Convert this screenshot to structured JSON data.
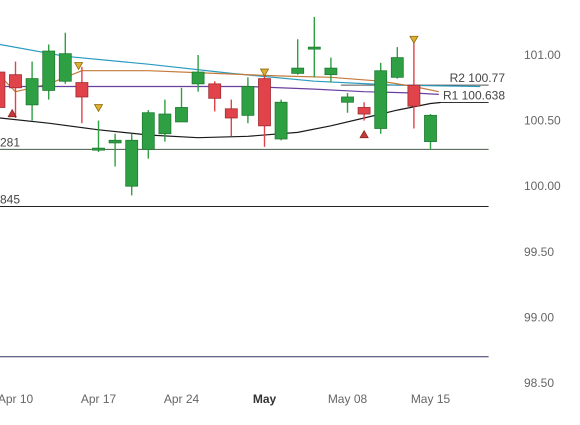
{
  "chart_data": {
    "type": "candlestick",
    "instrument_hint": "",
    "y_axis": {
      "ticks": [
        "101.00",
        "100.50",
        "100.00",
        "99.50",
        "99.00",
        "98.50"
      ],
      "tick_values": [
        101.0,
        100.5,
        100.0,
        99.5,
        99.0,
        98.5
      ],
      "ylim": [
        98.45,
        101.35
      ]
    },
    "x_axis": {
      "ticks": [
        {
          "label": "Apr 10",
          "index": 0,
          "bold": false
        },
        {
          "label": "Apr 17",
          "index": 5,
          "bold": false
        },
        {
          "label": "Apr 24",
          "index": 10,
          "bold": false
        },
        {
          "label": "May",
          "index": 15,
          "bold": true
        },
        {
          "label": "May 08",
          "index": 20,
          "bold": false
        },
        {
          "label": "May 15",
          "index": 25,
          "bold": false
        }
      ]
    },
    "candles": [
      {
        "i": -1,
        "open": 100.87,
        "close": 100.6,
        "high": 101.1,
        "low": 100.56
      },
      {
        "i": 0,
        "open": 100.85,
        "close": 100.75,
        "high": 100.95,
        "low": 100.52
      },
      {
        "i": 1,
        "open": 100.62,
        "close": 100.82,
        "high": 100.95,
        "low": 100.5
      },
      {
        "i": 2,
        "open": 100.73,
        "close": 101.03,
        "high": 101.08,
        "low": 100.66
      },
      {
        "i": 3,
        "open": 100.8,
        "close": 101.01,
        "high": 101.17,
        "low": 100.78
      },
      {
        "i": 4,
        "open": 100.79,
        "close": 100.68,
        "high": 100.91,
        "low": 100.48
      },
      {
        "i": 5,
        "open": 100.28,
        "close": 100.29,
        "high": 100.5,
        "low": 100.26
      },
      {
        "i": 6,
        "open": 100.33,
        "close": 100.35,
        "high": 100.4,
        "low": 100.15
      },
      {
        "i": 7,
        "open": 100.0,
        "close": 100.35,
        "high": 100.4,
        "low": 99.93
      },
      {
        "i": 8,
        "open": 100.28,
        "close": 100.56,
        "high": 100.58,
        "low": 100.21
      },
      {
        "i": 9,
        "open": 100.4,
        "close": 100.55,
        "high": 100.66,
        "low": 100.34
      },
      {
        "i": 10,
        "open": 100.49,
        "close": 100.6,
        "high": 100.75,
        "low": 100.49
      },
      {
        "i": 11,
        "open": 100.78,
        "close": 100.87,
        "high": 101.0,
        "low": 100.72
      },
      {
        "i": 12,
        "open": 100.78,
        "close": 100.67,
        "high": 100.8,
        "low": 100.57
      },
      {
        "i": 13,
        "open": 100.59,
        "close": 100.52,
        "high": 100.66,
        "low": 100.38
      },
      {
        "i": 14,
        "open": 100.54,
        "close": 100.76,
        "high": 100.83,
        "low": 100.48
      },
      {
        "i": 15,
        "open": 100.82,
        "close": 100.46,
        "high": 100.87,
        "low": 100.3
      },
      {
        "i": 16,
        "open": 100.36,
        "close": 100.64,
        "high": 100.66,
        "low": 100.35
      },
      {
        "i": 17,
        "open": 100.86,
        "close": 100.9,
        "high": 101.12,
        "low": 100.85
      },
      {
        "i": 18,
        "open": 101.06,
        "close": 101.06,
        "high": 101.29,
        "low": 100.83
      },
      {
        "i": 19,
        "open": 100.85,
        "close": 100.9,
        "high": 100.98,
        "low": 100.79
      },
      {
        "i": 20,
        "open": 100.64,
        "close": 100.68,
        "high": 100.71,
        "low": 100.56
      },
      {
        "i": 21,
        "open": 100.6,
        "close": 100.55,
        "high": 100.64,
        "low": 100.5
      },
      {
        "i": 22,
        "open": 100.44,
        "close": 100.88,
        "high": 100.94,
        "low": 100.4
      },
      {
        "i": 23,
        "open": 100.83,
        "close": 100.98,
        "high": 101.06,
        "low": 100.82
      },
      {
        "i": 24,
        "open": 100.77,
        "close": 100.61,
        "high": 101.11,
        "low": 100.44
      },
      {
        "i": 25,
        "open": 100.34,
        "close": 100.54,
        "high": 100.55,
        "low": 100.28
      }
    ],
    "markers": [
      {
        "i": -0.2,
        "value": 100.56,
        "dir": "up"
      },
      {
        "i": 3.8,
        "value": 100.92,
        "dir": "down"
      },
      {
        "i": 5,
        "value": 100.6,
        "dir": "down"
      },
      {
        "i": 15,
        "value": 100.87,
        "dir": "down"
      },
      {
        "i": 21,
        "value": 100.4,
        "dir": "up"
      },
      {
        "i": 24,
        "value": 101.12,
        "dir": "down"
      }
    ],
    "horizontal_lines": [
      {
        "label": "R2",
        "value": 100.77,
        "color": "#555555",
        "label_text": "R2 100.77",
        "start": 19.6,
        "end": 28.5
      },
      {
        "label": "R1",
        "value": 100.638,
        "color": "#333333",
        "label_text": "R1 100.638",
        "start": 25.6,
        "end": 28.5
      },
      {
        "label": "",
        "value": 100.281,
        "color": "#4a5a4a",
        "label_text": "281",
        "start": -2.8,
        "end": 28.5
      },
      {
        "label": "",
        "value": 99.845,
        "color": "#222222",
        "label_text": "845",
        "start": -2.8,
        "end": 28.5
      },
      {
        "label": "",
        "value": 98.7,
        "color": "#333366",
        "label_text": "",
        "start": -2.8,
        "end": 28.5
      }
    ],
    "moving_averages": [
      {
        "color": "#2a9bc0",
        "points": [
          [
            -2,
            101.08
          ],
          [
            3,
            100.99
          ],
          [
            8,
            100.93
          ],
          [
            13,
            100.86
          ],
          [
            18,
            100.8
          ],
          [
            23,
            100.77
          ],
          [
            28,
            100.76
          ]
        ]
      },
      {
        "color": "#c47a3a",
        "points": [
          [
            -2,
            100.84
          ],
          [
            0,
            100.72
          ],
          [
            2,
            100.78
          ],
          [
            4,
            100.88
          ],
          [
            8,
            100.88
          ],
          [
            12,
            100.86
          ],
          [
            16,
            100.84
          ],
          [
            19,
            100.83
          ],
          [
            22,
            100.8
          ],
          [
            24,
            100.76
          ],
          [
            25.5,
            100.72
          ]
        ]
      },
      {
        "color": "#6a3fa0",
        "points": [
          [
            -2,
            100.76
          ],
          [
            4,
            100.76
          ],
          [
            9,
            100.76
          ],
          [
            14,
            100.76
          ],
          [
            18,
            100.74
          ],
          [
            21,
            100.72
          ],
          [
            24,
            100.71
          ],
          [
            25.5,
            100.7
          ]
        ]
      },
      {
        "color": "#1a1a1a",
        "points": [
          [
            -2,
            100.52
          ],
          [
            2,
            100.48
          ],
          [
            5,
            100.43
          ],
          [
            8,
            100.39
          ],
          [
            11,
            100.37
          ],
          [
            14,
            100.38
          ],
          [
            17,
            100.41
          ],
          [
            19,
            100.46
          ],
          [
            21,
            100.52
          ],
          [
            23,
            100.58
          ],
          [
            25,
            100.63
          ],
          [
            25.6,
            100.638
          ]
        ]
      }
    ],
    "colors": {
      "bull": "#2ea043",
      "bear": "#e0434a",
      "bull_border": "#1e7a30",
      "bear_border": "#a02a30",
      "marker": "#e0b030",
      "marker_down_border": "#8a6a10",
      "marker_up": "#c83a3a"
    }
  }
}
